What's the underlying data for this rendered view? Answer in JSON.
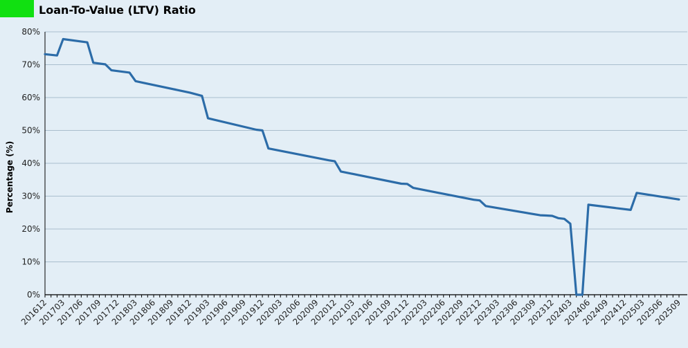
{
  "header": {
    "title": "Loan-To-Value (LTV) Ratio",
    "legend_color": "#11e011"
  },
  "chart_data": {
    "type": "line",
    "title": "Loan-To-Value (LTV) Ratio",
    "xlabel": "",
    "ylabel": "Percentage (%)",
    "ylim": [
      0,
      80
    ],
    "y_ticks": [
      "0%",
      "10%",
      "20%",
      "30%",
      "40%",
      "50%",
      "60%",
      "70%",
      "80%"
    ],
    "x_tick_labels": [
      "201612",
      "201703",
      "201706",
      "201709",
      "201712",
      "201803",
      "201806",
      "201809",
      "201812",
      "201903",
      "201906",
      "201909",
      "201912",
      "202003",
      "202006",
      "202009",
      "202012",
      "202103",
      "202106",
      "202109",
      "202112",
      "202203",
      "202206",
      "202209",
      "202212",
      "202303",
      "202306",
      "202309",
      "202312",
      "202403",
      "202406",
      "202409",
      "202412",
      "202503",
      "202506",
      "202509"
    ],
    "x_range": [
      "201612",
      "202509"
    ],
    "grid": "horizontal",
    "line_color": "#2c6ca8",
    "series": [
      {
        "points": [
          [
            "201612",
            73.2
          ],
          [
            "201702",
            72.8
          ],
          [
            "201703",
            77.8
          ],
          [
            "201707",
            76.8
          ],
          [
            "201708",
            70.6
          ],
          [
            "201710",
            70.1
          ],
          [
            "201711",
            68.3
          ],
          [
            "201802",
            67.6
          ],
          [
            "201803",
            65.0
          ],
          [
            "201804",
            64.6
          ],
          [
            "201812",
            61.5
          ],
          [
            "201902",
            60.5
          ],
          [
            "201903",
            53.7
          ],
          [
            "201911",
            50.2
          ],
          [
            "201912",
            50.0
          ],
          [
            "202001",
            44.5
          ],
          [
            "202011",
            40.9
          ],
          [
            "202012",
            40.6
          ],
          [
            "202101",
            37.5
          ],
          [
            "202111",
            33.8
          ],
          [
            "202112",
            33.7
          ],
          [
            "202201",
            32.5
          ],
          [
            "202211",
            28.9
          ],
          [
            "202212",
            28.7
          ],
          [
            "202301",
            27.0
          ],
          [
            "202310",
            24.2
          ],
          [
            "202311",
            24.1
          ],
          [
            "202312",
            24.0
          ],
          [
            "202401",
            23.3
          ],
          [
            "202402",
            23.1
          ],
          [
            "202403",
            21.6
          ],
          [
            "202404",
            0
          ],
          [
            "202405",
            0
          ],
          [
            "202406",
            27.4
          ],
          [
            "202501",
            25.8
          ],
          [
            "202502",
            31.0
          ],
          [
            "202509",
            29.0
          ]
        ]
      }
    ]
  }
}
